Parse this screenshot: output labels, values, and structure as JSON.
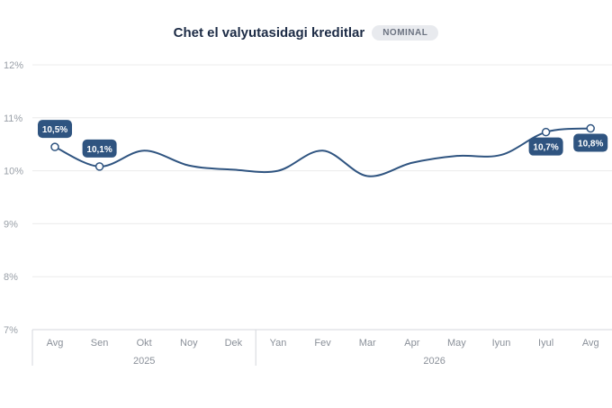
{
  "header": {
    "title": "Chet el valyutasidagi kreditlar",
    "badge": "NOMINAL"
  },
  "colors": {
    "line": "#2f5480",
    "label_bg": "#2f5480",
    "grid": "#ececec"
  },
  "chart_data": {
    "type": "line",
    "title": "Chet el valyutasidagi kreditlar",
    "categories": [
      "Avg",
      "Sen",
      "Okt",
      "Noy",
      "Dek",
      "Yan",
      "Fev",
      "Mar",
      "Apr",
      "May",
      "Iyun",
      "Iyul",
      "Avg"
    ],
    "groups": [
      {
        "label": "2025",
        "start": 0,
        "end": 4
      },
      {
        "label": "2026",
        "start": 5,
        "end": 12
      }
    ],
    "series": [
      {
        "values": [
          10.45,
          10.08,
          10.38,
          10.1,
          10.02,
          10.0,
          10.38,
          9.9,
          10.15,
          10.28,
          10.3,
          10.73,
          10.8
        ]
      }
    ],
    "annotations": [
      {
        "index": 0,
        "text": "10,5%",
        "position": "above"
      },
      {
        "index": 1,
        "text": "10,1%",
        "position": "above"
      },
      {
        "index": 11,
        "text": "10,7%",
        "position": "below"
      },
      {
        "index": 12,
        "text": "10,8%",
        "position": "below"
      }
    ],
    "ylim": [
      7,
      12
    ],
    "yticks": [
      7,
      8,
      9,
      10,
      11,
      12
    ],
    "ytick_labels": [
      "7%",
      "8%",
      "9%",
      "10%",
      "11%",
      "12%"
    ],
    "grid": true,
    "xlabel": "",
    "ylabel": ""
  }
}
